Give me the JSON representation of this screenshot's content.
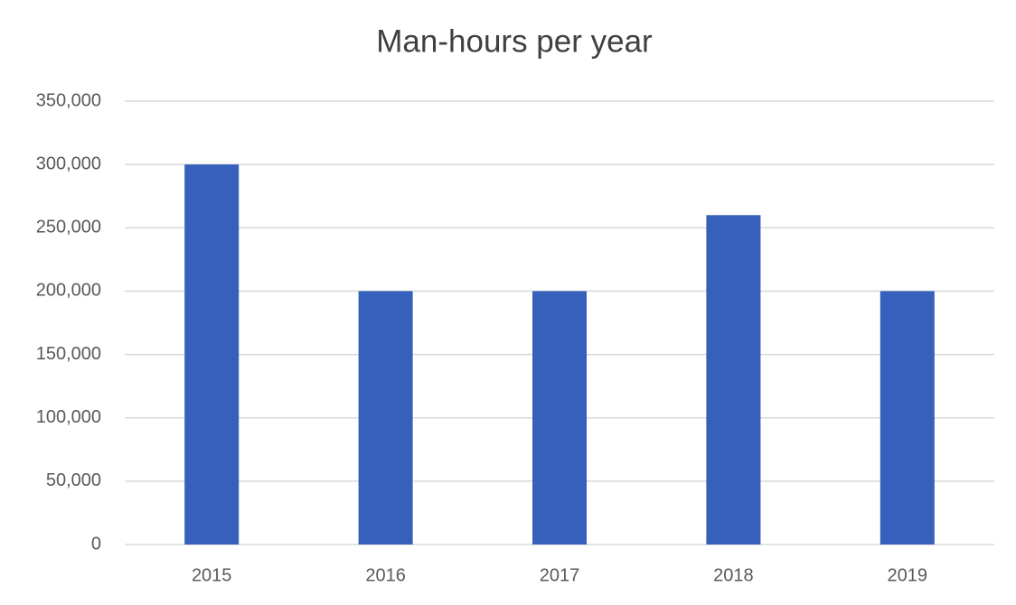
{
  "chart_data": {
    "type": "bar",
    "title": "Man-hours per year",
    "categories": [
      "2015",
      "2016",
      "2017",
      "2018",
      "2019"
    ],
    "values": [
      300000,
      200000,
      200000,
      260000,
      200000
    ],
    "color": "#3560bb",
    "ylim": [
      0,
      350000
    ],
    "yticks": [
      0,
      {
        "value": 50000,
        "label": "50,000"
      },
      {
        "value": 100000,
        "label": "100,000"
      },
      {
        "value": 150000,
        "label": "150,000"
      },
      {
        "value": 200000,
        "label": "200,000"
      },
      {
        "value": 250000,
        "label": "250,000"
      },
      {
        "value": 300000,
        "label": "300,000"
      },
      {
        "value": 350000,
        "label": "350,000"
      }
    ],
    "grid": true
  }
}
